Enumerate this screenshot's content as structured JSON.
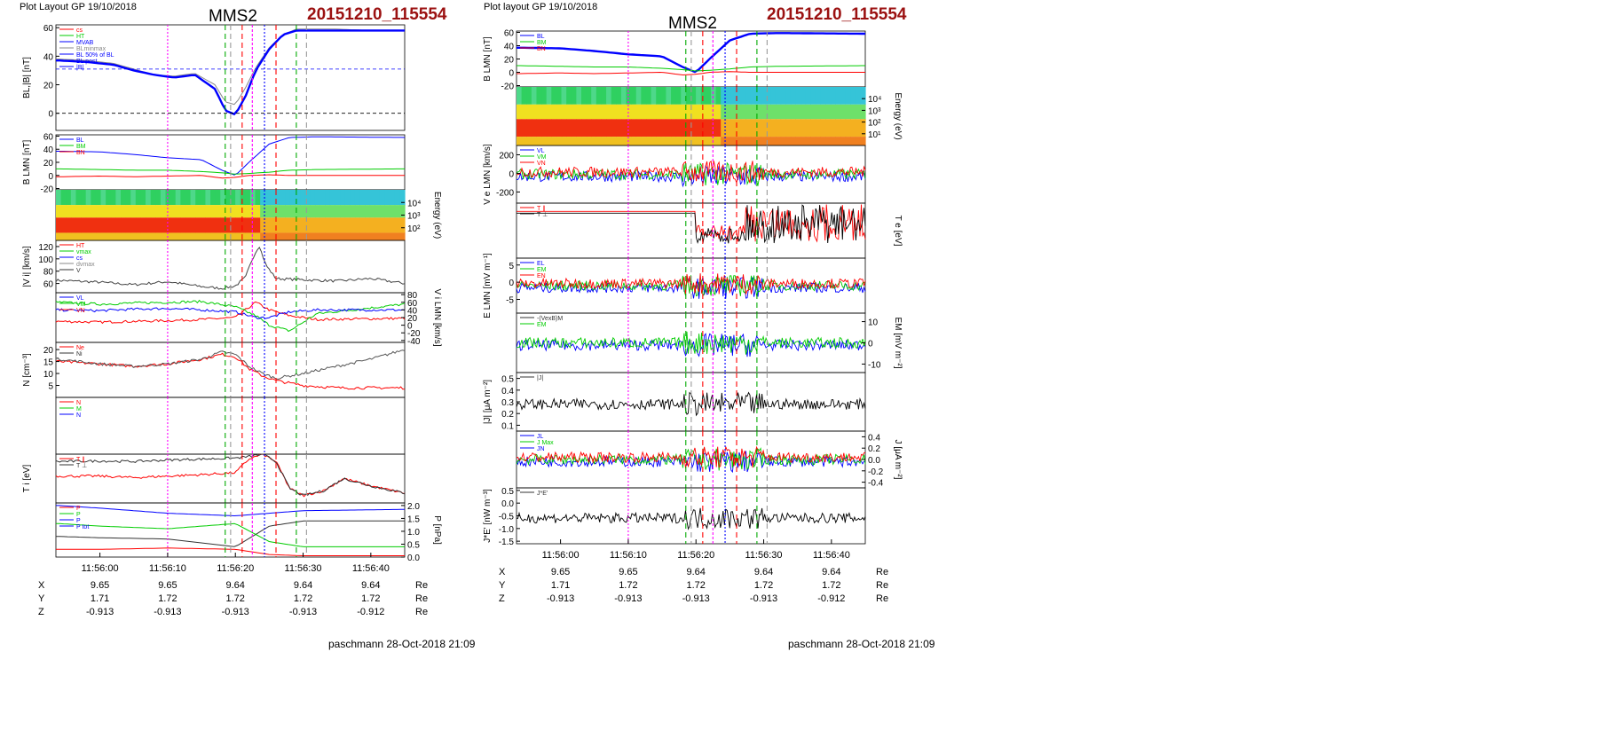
{
  "page": {
    "header_left": "Plot Layout GP 19/10/2018",
    "header_right": "Plot layout GP 19/10/2018",
    "spacecraft": "MMS2",
    "event_id": "20151210_115554",
    "footer": "paschmann 28-Oct-2018 21:09",
    "colors": {
      "event": "#9b1111",
      "blue": "#0000ff",
      "green": "#00cc00",
      "red": "#ff0000",
      "magenta": "#ff00ff",
      "gray": "#999999"
    }
  },
  "time_ticks": [
    "11:56:00",
    "11:56:10",
    "11:56:20",
    "11:56:30",
    "11:56:40"
  ],
  "time_range_seconds": [
    -6.5,
    45
  ],
  "orbit_table": {
    "rows": [
      {
        "label": "X",
        "values": [
          "9.65",
          "9.65",
          "9.64",
          "9.64",
          "9.64"
        ],
        "unit": "Re"
      },
      {
        "label": "Y",
        "values": [
          "1.71",
          "1.72",
          "1.72",
          "1.72",
          "1.72"
        ],
        "unit": "Re"
      },
      {
        "label": "Z",
        "values": [
          "-0.913",
          "-0.913",
          "-0.913",
          "-0.913",
          "-0.912"
        ],
        "unit": "Re"
      }
    ]
  },
  "chart_data": [
    {
      "type": "line",
      "column": "left",
      "ylabel": "B_L,|B| [nT]",
      "ylim": [
        -12,
        62
      ],
      "yticks": [
        "0",
        "20",
        "40",
        "60"
      ],
      "legend": [
        "cs",
        "HT",
        "MVAB",
        "BLminmax",
        "BL 50% of BL",
        "BL_post",
        "|B|"
      ],
      "series": [
        {
          "name": "|B|",
          "x": [
            -6,
            -2,
            2,
            5,
            8,
            11,
            14,
            17,
            18.5,
            20,
            21.5,
            23,
            25,
            27,
            29,
            31,
            35,
            40,
            45
          ],
          "values": [
            38,
            37,
            35,
            31,
            27,
            26,
            28,
            20,
            8,
            6,
            18,
            32,
            46,
            55,
            59,
            59,
            59,
            58,
            58
          ]
        },
        {
          "name": "B_L",
          "x": [
            -6,
            -2,
            2,
            5,
            8,
            11,
            14,
            17,
            18.5,
            20,
            21.5,
            23,
            25,
            27,
            29,
            31,
            35,
            40,
            45
          ],
          "values": [
            37,
            36,
            34,
            30,
            27,
            25,
            27,
            17,
            2,
            -1,
            12,
            30,
            45,
            55,
            58,
            58,
            58,
            58,
            58
          ]
        }
      ],
      "reference_lines": [
        {
          "y": 31
        },
        {
          "y": 0
        }
      ]
    },
    {
      "type": "line",
      "column": "left",
      "ylabel": "B_LMN [nT]",
      "ylim": [
        -22,
        62
      ],
      "yticks": [
        "-20",
        "0",
        "20",
        "40",
        "60"
      ],
      "legend": [
        "B_L",
        "B_M",
        "B_N"
      ],
      "series": [
        {
          "name": "B_L",
          "x": [
            -6,
            0,
            5,
            10,
            15,
            18,
            20,
            22,
            25,
            28,
            32,
            45
          ],
          "values": [
            37,
            36,
            32,
            27,
            24,
            8,
            0,
            20,
            48,
            58,
            59,
            58
          ]
        },
        {
          "name": "B_M",
          "x": [
            -6,
            0,
            5,
            10,
            15,
            18,
            20,
            22,
            25,
            28,
            32,
            45
          ],
          "values": [
            10,
            9,
            8,
            8,
            6,
            4,
            2,
            3,
            5,
            8,
            9,
            10
          ]
        },
        {
          "name": "B_N",
          "x": [
            -6,
            0,
            5,
            10,
            15,
            18,
            20,
            22,
            25,
            28,
            32,
            45
          ],
          "values": [
            -2,
            -1,
            -2,
            -1,
            0,
            -4,
            -3,
            0,
            1,
            0,
            0,
            0
          ]
        }
      ]
    },
    {
      "type": "heatmap",
      "column": "left",
      "ylabel": "Energy (eV)",
      "yticks": [
        "10^2",
        "10^3",
        "10^4"
      ]
    },
    {
      "type": "line",
      "column": "left",
      "ylabel": "|V_i| [km/s]",
      "ylim": [
        45,
        130
      ],
      "yticks": [
        "60",
        "80",
        "100",
        "120"
      ],
      "legend": [
        "HT",
        "vmax",
        "cs",
        "dvmax",
        "V"
      ],
      "series": [
        {
          "name": "V",
          "x": [
            -6,
            0,
            5,
            10,
            15,
            18,
            20,
            21.5,
            22.5,
            23.5,
            24.5,
            26,
            30,
            35,
            40,
            45
          ],
          "values": [
            65,
            62,
            58,
            63,
            55,
            52,
            56,
            70,
            100,
            122,
            90,
            68,
            66,
            64,
            68,
            60
          ]
        }
      ]
    },
    {
      "type": "line",
      "column": "left",
      "ylabel": "V_i LMN [km/s]",
      "ylim": [
        -45,
        85
      ],
      "yticks": [
        "-40",
        "-20",
        "0",
        "20",
        "40",
        "60",
        "80"
      ],
      "legend": [
        "V_L",
        "V_M",
        "V_N"
      ],
      "series": [
        {
          "name": "V_L",
          "x": [
            -6,
            0,
            5,
            10,
            15,
            20,
            23,
            25,
            28,
            32,
            45
          ],
          "values": [
            10,
            8,
            10,
            12,
            15,
            20,
            60,
            40,
            25,
            15,
            18
          ]
        },
        {
          "name": "V_M",
          "x": [
            -6,
            0,
            5,
            10,
            15,
            20,
            23,
            25,
            28,
            32,
            45
          ],
          "values": [
            60,
            55,
            58,
            60,
            62,
            48,
            25,
            0,
            -15,
            30,
            55
          ]
        },
        {
          "name": "V_N",
          "x": [
            -6,
            0,
            5,
            10,
            15,
            20,
            23,
            25,
            28,
            32,
            45
          ],
          "values": [
            40,
            38,
            42,
            44,
            40,
            35,
            20,
            20,
            35,
            40,
            40
          ]
        }
      ]
    },
    {
      "type": "line",
      "column": "left",
      "ylabel": "N [cm^-3]",
      "ylim": [
        0,
        23
      ],
      "yticks": [
        "5",
        "10",
        "15",
        "20"
      ],
      "legend": [
        "Ne",
        "Ni"
      ],
      "series": [
        {
          "name": "Ne",
          "x": [
            -6,
            0,
            5,
            10,
            15,
            18,
            20,
            22,
            24,
            26,
            28,
            30,
            35,
            40,
            45
          ],
          "values": [
            15,
            14,
            13,
            14,
            16,
            18,
            17,
            12,
            9,
            7,
            6,
            5,
            4,
            4,
            4
          ]
        },
        {
          "name": "Ni",
          "x": [
            -6,
            0,
            5,
            10,
            15,
            18,
            20,
            22,
            24,
            26,
            28,
            30,
            35,
            40,
            45
          ],
          "values": [
            16,
            14,
            13,
            14,
            16,
            19,
            18,
            13,
            10,
            8,
            9,
            10,
            13,
            16,
            20
          ]
        }
      ]
    },
    {
      "type": "line",
      "column": "left",
      "ylabel": "",
      "legend": [
        "N",
        "M",
        "N"
      ]
    },
    {
      "type": "line",
      "column": "left",
      "ylabel": "T_i [eV]",
      "legend": [
        "T_∥",
        "T_⊥"
      ],
      "series": [
        {
          "name": "T_∥",
          "x": [
            -6,
            0,
            5,
            10,
            15,
            20,
            22,
            24,
            26,
            28,
            30,
            33,
            36,
            40,
            45
          ],
          "values": [
            0.55,
            0.55,
            0.52,
            0.55,
            0.58,
            0.62,
            0.9,
            1.0,
            0.85,
            0.3,
            0.15,
            0.25,
            0.5,
            0.35,
            0.2
          ]
        },
        {
          "name": "T_⊥",
          "x": [
            -6,
            0,
            5,
            10,
            15,
            20,
            22,
            24,
            26,
            28,
            30,
            33,
            36,
            40,
            45
          ],
          "values": [
            0.85,
            0.86,
            0.85,
            0.88,
            0.9,
            0.92,
            0.95,
            1.0,
            0.85,
            0.3,
            0.15,
            0.25,
            0.5,
            0.35,
            0.2
          ]
        }
      ]
    },
    {
      "type": "line",
      "column": "left",
      "ylabel": "P [nPa]",
      "ylim": [
        0,
        2.1
      ],
      "yticks": [
        "0.0",
        "0.5",
        "1.0",
        "1.5",
        "2.0"
      ],
      "legend": [
        "P",
        "P",
        "P",
        "P_tot"
      ],
      "series": [
        {
          "name": "P_tot",
          "x": [
            -6,
            0,
            10,
            20,
            25,
            30,
            45
          ],
          "values": [
            2.0,
            1.9,
            1.7,
            1.6,
            1.7,
            1.8,
            1.85
          ]
        },
        {
          "name": "P_B",
          "x": [
            -6,
            0,
            10,
            20,
            25,
            30,
            45
          ],
          "values": [
            0.8,
            0.75,
            0.7,
            0.4,
            1.2,
            1.4,
            1.4
          ]
        },
        {
          "name": "P_i",
          "x": [
            -6,
            0,
            10,
            20,
            25,
            30,
            45
          ],
          "values": [
            1.3,
            1.2,
            1.1,
            1.3,
            0.6,
            0.4,
            0.4
          ]
        },
        {
          "name": "P_e",
          "x": [
            -6,
            0,
            10,
            20,
            25,
            30,
            45
          ],
          "values": [
            0.3,
            0.3,
            0.35,
            0.3,
            0.1,
            0.05,
            0.05
          ]
        }
      ]
    },
    {
      "type": "line",
      "column": "right",
      "ylabel": "B_LMN [nT]",
      "ylim": [
        -22,
        62
      ],
      "yticks": [
        "-20",
        "0",
        "20",
        "40",
        "60"
      ],
      "legend": [
        "B_L",
        "B_M",
        "B_N"
      ],
      "series": [
        {
          "name": "B_L",
          "x": [
            -6,
            0,
            5,
            10,
            15,
            18,
            20,
            22,
            25,
            28,
            32,
            45
          ],
          "values": [
            37,
            36,
            32,
            27,
            24,
            8,
            0,
            20,
            48,
            58,
            59,
            58
          ]
        },
        {
          "name": "B_M",
          "x": [
            -6,
            0,
            5,
            10,
            15,
            18,
            20,
            22,
            25,
            28,
            32,
            45
          ],
          "values": [
            10,
            9,
            8,
            8,
            6,
            4,
            2,
            3,
            5,
            8,
            9,
            10
          ]
        },
        {
          "name": "B_N",
          "x": [
            -6,
            0,
            5,
            10,
            15,
            18,
            20,
            22,
            25,
            28,
            32,
            45
          ],
          "values": [
            -2,
            -1,
            -2,
            -1,
            0,
            -4,
            -3,
            0,
            1,
            0,
            0,
            0
          ]
        }
      ]
    },
    {
      "type": "heatmap",
      "column": "right",
      "ylabel": "Energy (eV)",
      "yticks": [
        "10^1",
        "10^2",
        "10^3",
        "10^4"
      ]
    },
    {
      "type": "line",
      "column": "right",
      "ylabel": "V_e LMN [km/s]",
      "ylim": [
        -320,
        300
      ],
      "yticks": [
        "-200",
        "0",
        "200"
      ],
      "legend": [
        "V_L",
        "V_M",
        "V_N"
      ]
    },
    {
      "type": "line",
      "column": "right",
      "ylabel": "T_e [eV]",
      "legend": [
        "T_∥",
        "T_⊥"
      ]
    },
    {
      "type": "line",
      "column": "right",
      "ylabel": "E_LMN [mV m^-1]",
      "ylim": [
        -9,
        7
      ],
      "yticks": [
        "-5",
        "0",
        "5"
      ],
      "legend": [
        "E_L",
        "E_M",
        "E_N"
      ]
    },
    {
      "type": "line",
      "column": "right",
      "ylabel": "E_M [mV m^-2]",
      "ylim": [
        -14,
        14
      ],
      "yticks": [
        "-10",
        "0",
        "10"
      ],
      "legend": [
        "-(VexB)_M",
        "E_M"
      ]
    },
    {
      "type": "line",
      "column": "right",
      "ylabel": "|J| [μA m^-2]",
      "ylim": [
        0.05,
        0.55
      ],
      "yticks": [
        "0.1",
        "0.2",
        "0.3",
        "0.4",
        "0.5"
      ],
      "legend": [
        "|J|"
      ]
    },
    {
      "type": "line",
      "column": "right",
      "ylabel": "J [μA m^-2]",
      "ylim": [
        -0.5,
        0.5
      ],
      "yticks": [
        "-0.4",
        "-0.2",
        "0.0",
        "0.2",
        "0.4"
      ],
      "legend": [
        "J_L",
        "J_Max",
        "J_N"
      ]
    },
    {
      "type": "line",
      "column": "right",
      "ylabel": "J*E' [nW m^-3]",
      "ylim": [
        -1.6,
        0.6
      ],
      "yticks": [
        "-1.5",
        "-1.0",
        "-0.5",
        "0.0",
        "0.5"
      ],
      "legend": [
        "J*E'"
      ]
    }
  ]
}
